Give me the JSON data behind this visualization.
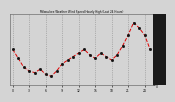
{
  "title": "Milwaukee Weather Wind Speed Hourly High (Last 24 Hours)",
  "bg_color": "#d4d4d4",
  "plot_bg": "#d4d4d4",
  "left_bar_color": "#1a1a1a",
  "line_color": "#dd0000",
  "marker_color": "#111111",
  "grid_color": "#888888",
  "y_values": [
    20,
    15,
    10,
    8,
    7,
    9,
    6,
    5,
    8,
    12,
    14,
    16,
    18,
    20,
    17,
    15,
    18,
    16,
    14,
    17,
    22,
    28,
    35,
    32,
    28,
    20
  ],
  "ylim": [
    0,
    40
  ],
  "yticks": [
    0,
    5,
    10,
    15,
    20,
    25,
    30,
    35
  ],
  "n_points": 26
}
